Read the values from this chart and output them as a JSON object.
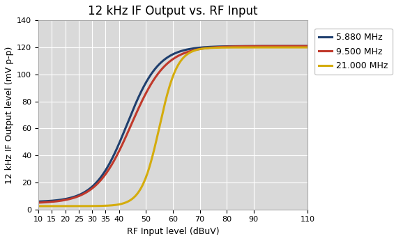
{
  "title": "12 kHz IF Output vs. RF Input",
  "xlabel": "RF Input level (dBuV)",
  "ylabel": "12 kHz IF Output level (mV p-p)",
  "xlim": [
    10,
    110
  ],
  "ylim": [
    0,
    140
  ],
  "xticks": [
    10,
    15,
    20,
    25,
    30,
    35,
    40,
    50,
    60,
    70,
    80,
    90,
    110
  ],
  "yticks": [
    0,
    20,
    40,
    60,
    80,
    100,
    120,
    140
  ],
  "series": [
    {
      "label": "5.880 MHz",
      "color": "#1F3F6E",
      "linewidth": 2.2,
      "x_center": 43.0,
      "steepness": 0.17,
      "y_max": 121,
      "y_min": 5.5
    },
    {
      "label": "9.500 MHz",
      "color": "#C0392B",
      "linewidth": 2.2,
      "x_center": 44.5,
      "steepness": 0.155,
      "y_max": 121,
      "y_min": 4.5
    },
    {
      "label": "21.000 MHz",
      "color": "#D4AC0D",
      "linewidth": 2.2,
      "x_center": 55.0,
      "steepness": 0.3,
      "y_max": 120,
      "y_min": 2.5
    }
  ],
  "plot_bg": "#D9D9D9",
  "fig_bg": "#FFFFFF",
  "grid_color": "#FFFFFF",
  "title_fontsize": 12,
  "axis_label_fontsize": 9,
  "tick_fontsize": 8
}
